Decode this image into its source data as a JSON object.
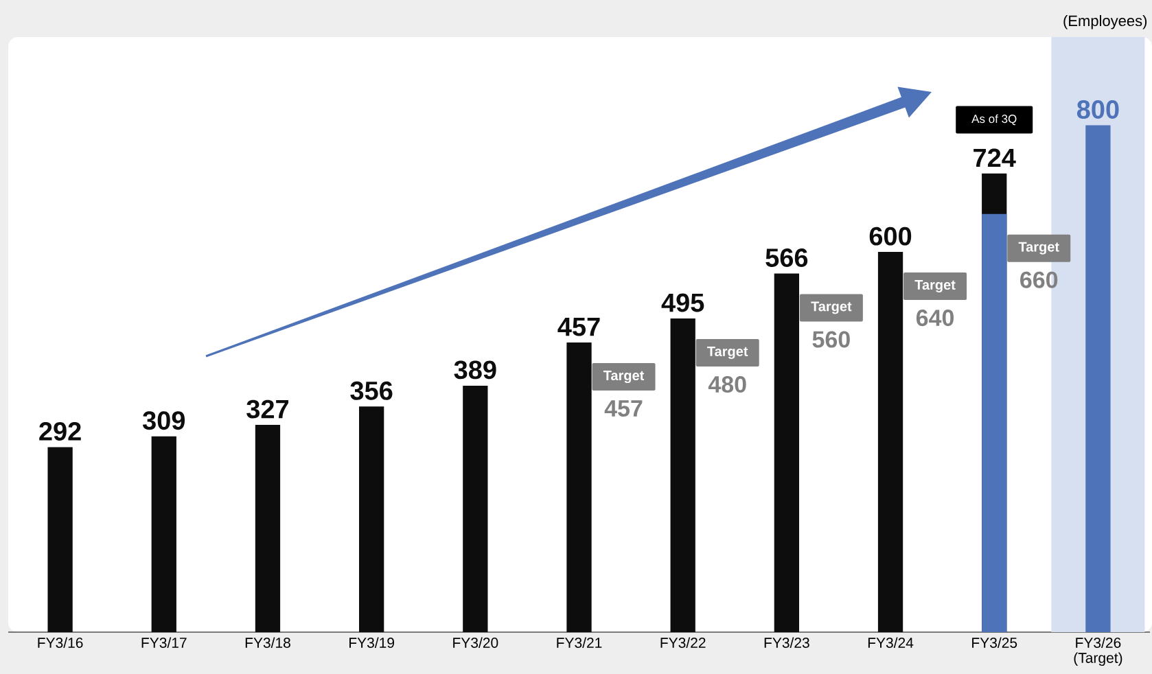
{
  "chart_data": {
    "type": "bar",
    "categories": [
      "FY3/16",
      "FY3/17",
      "FY3/18",
      "FY3/19",
      "FY3/20",
      "FY3/21",
      "FY3/22",
      "FY3/23",
      "FY3/24",
      "FY3/25",
      "FY3/26 (Target)"
    ],
    "series": [
      {
        "color": "#0d0d0d",
        "values": [
          292,
          309,
          327,
          356,
          389,
          457,
          495,
          566,
          600,
          724,
          null
        ],
        "value_labels": [
          "292",
          "309",
          "327",
          "356",
          "389",
          "457",
          "495",
          "566",
          "600",
          "724",
          null
        ]
      },
      {
        "color": "#4f73b8",
        "values": [
          null,
          null,
          null,
          null,
          null,
          null,
          null,
          null,
          null,
          660,
          800
        ],
        "value_labels": [
          null,
          null,
          null,
          null,
          null,
          null,
          null,
          null,
          null,
          null,
          "800"
        ]
      }
    ],
    "bands": [
      {
        "axis": "x",
        "from": "FY3/26 (Target)",
        "to": "FY3/26 (Target)",
        "color": "#d6e0f1"
      }
    ],
    "annotations": [
      "(Employees)",
      "As of 3Q",
      "Target",
      "457",
      "Target",
      "480",
      "Target",
      "560",
      "Target",
      "640",
      "Target",
      {
        "text": "660",
        "x": "FY3/25",
        "y": 660
      }
    ]
  }
}
